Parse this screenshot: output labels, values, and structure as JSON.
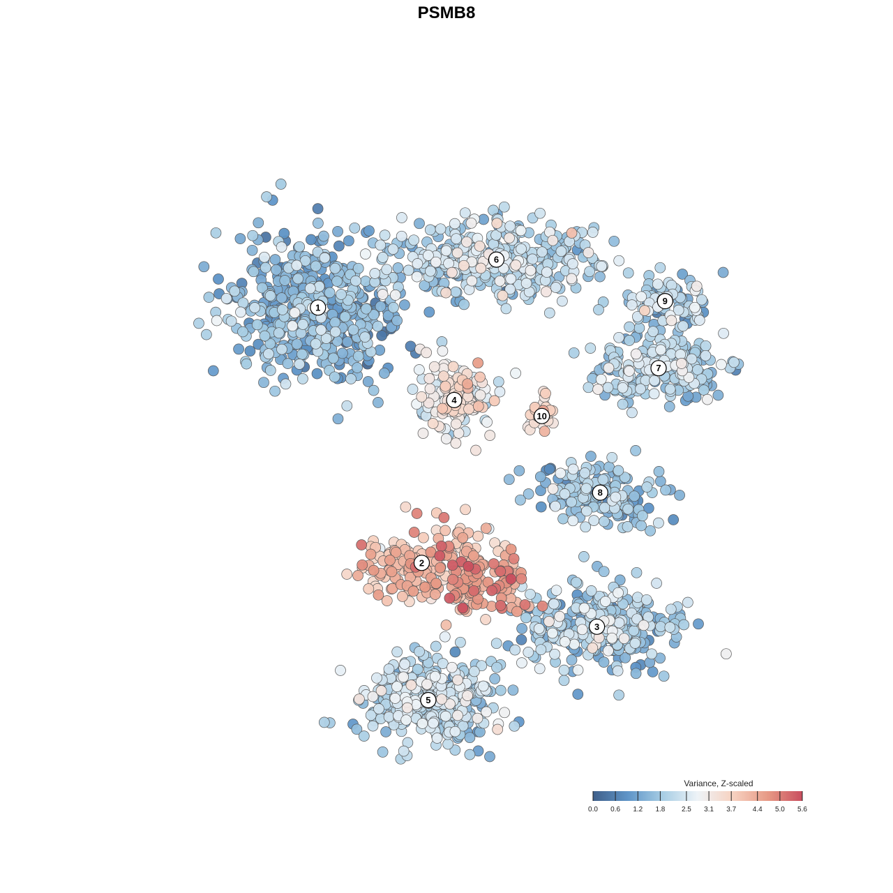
{
  "chart_data": {
    "type": "scatter",
    "title": "PSMB8",
    "legend": {
      "title": "Variance, Z-scaled",
      "placement": "bottom-right",
      "min": 0.0,
      "max": 5.6,
      "ticks": [
        "0.0",
        "0.6",
        "1.2",
        "1.8",
        "2.5",
        "3.1",
        "3.7",
        "4.4",
        "5.0",
        "5.6"
      ],
      "colors": [
        "#3f5f8a",
        "#5f95c8",
        "#a7cde4",
        "#eef3f7",
        "#f7d2c1",
        "#e79a86",
        "#c94e5e"
      ]
    },
    "clusters": [
      {
        "label": "1",
        "x": -0.45,
        "y": 0.43,
        "n": 520,
        "sx": 0.13,
        "sy": 0.12,
        "mean": 1.4,
        "sd": 0.55
      },
      {
        "label": "2",
        "x": -0.13,
        "y": -0.37,
        "n": 170,
        "sx": 0.1,
        "sy": 0.06,
        "mean": 3.9,
        "sd": 0.55
      },
      {
        "label": "3",
        "x": 0.41,
        "y": -0.57,
        "n": 320,
        "sx": 0.12,
        "sy": 0.07,
        "mean": 1.9,
        "sd": 0.55
      },
      {
        "label": "4",
        "x": -0.03,
        "y": 0.14,
        "n": 170,
        "sx": 0.06,
        "sy": 0.06,
        "mean": 2.9,
        "sd": 0.55
      },
      {
        "label": "5",
        "x": -0.11,
        "y": -0.8,
        "n": 380,
        "sx": 0.1,
        "sy": 0.07,
        "mean": 2.0,
        "sd": 0.55
      },
      {
        "label": "6",
        "x": 0.1,
        "y": 0.58,
        "n": 420,
        "sx": 0.16,
        "sy": 0.06,
        "mean": 2.0,
        "sd": 0.55
      },
      {
        "label": "7",
        "x": 0.6,
        "y": 0.24,
        "n": 220,
        "sx": 0.1,
        "sy": 0.05,
        "mean": 1.9,
        "sd": 0.5
      },
      {
        "label": "8",
        "x": 0.42,
        "y": -0.15,
        "n": 160,
        "sx": 0.1,
        "sy": 0.05,
        "mean": 1.6,
        "sd": 0.55
      },
      {
        "label": "9",
        "x": 0.62,
        "y": 0.45,
        "n": 90,
        "sx": 0.07,
        "sy": 0.04,
        "mean": 2.0,
        "sd": 0.6
      },
      {
        "label": "10",
        "x": 0.24,
        "y": 0.09,
        "n": 30,
        "sx": 0.02,
        "sy": 0.03,
        "mean": 3.6,
        "sd": 0.35
      }
    ],
    "hotspot": {
      "x": 0.05,
      "y": -0.43,
      "n": 120,
      "sx": 0.08,
      "sy": 0.05,
      "mean": 4.6,
      "sd": 0.45
    },
    "xlim": [
      -1,
      1
    ],
    "ylim": [
      -1,
      1
    ],
    "grid": false
  }
}
